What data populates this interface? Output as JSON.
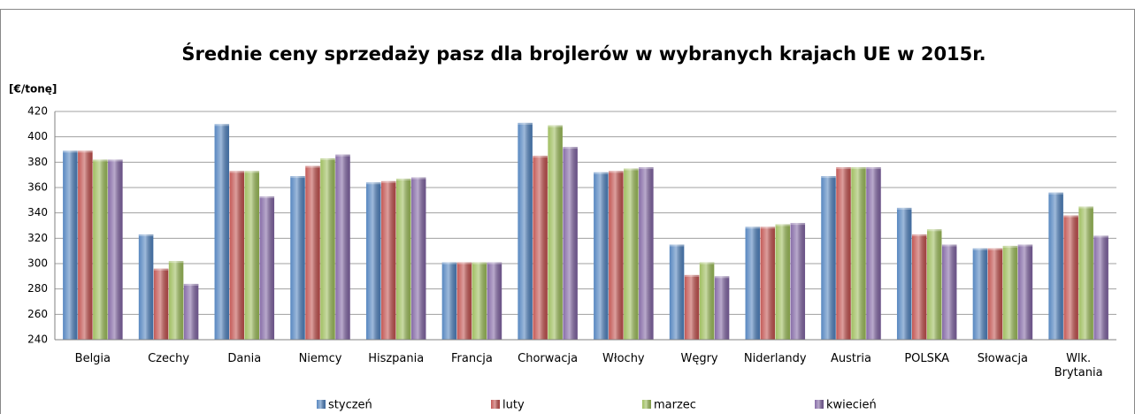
{
  "chart_data": {
    "type": "bar",
    "title": "Średnie ceny sprzedaży pasz dla brojlerów w wybranych krajach UE w 2015r.",
    "y_label": "[€/tonę]",
    "categories": [
      "Belgia",
      "Czechy",
      "Dania",
      "Niemcy",
      "Hiszpania",
      "Francja",
      "Chorwacja",
      "Włochy",
      "Węgry",
      "Niderlandy",
      "Austria",
      "POLSKA",
      "Słowacja",
      "Wlk. Brytania"
    ],
    "series": [
      {
        "name": "styczeń",
        "color": "#4f81bd",
        "values": [
          389,
          323,
          410,
          369,
          364,
          301,
          411,
          372,
          315,
          329,
          369,
          344,
          312,
          356
        ]
      },
      {
        "name": "luty",
        "color": "#c0504d",
        "values": [
          389,
          296,
          373,
          377,
          365,
          301,
          385,
          373,
          291,
          329,
          376,
          323,
          312,
          338
        ]
      },
      {
        "name": "marzec",
        "color": "#9bbb59",
        "values": [
          382,
          302,
          373,
          383,
          367,
          301,
          409,
          375,
          301,
          331,
          376,
          327,
          314,
          345
        ]
      },
      {
        "name": "kwiecień",
        "color": "#8064a2",
        "values": [
          382,
          284,
          353,
          386,
          368,
          301,
          392,
          376,
          290,
          332,
          376,
          315,
          315,
          322
        ]
      }
    ],
    "ylim": [
      240,
      420
    ],
    "yticks": [
      240,
      260,
      280,
      300,
      320,
      340,
      360,
      380,
      400,
      420
    ],
    "grid": true,
    "legend": "bottom"
  }
}
